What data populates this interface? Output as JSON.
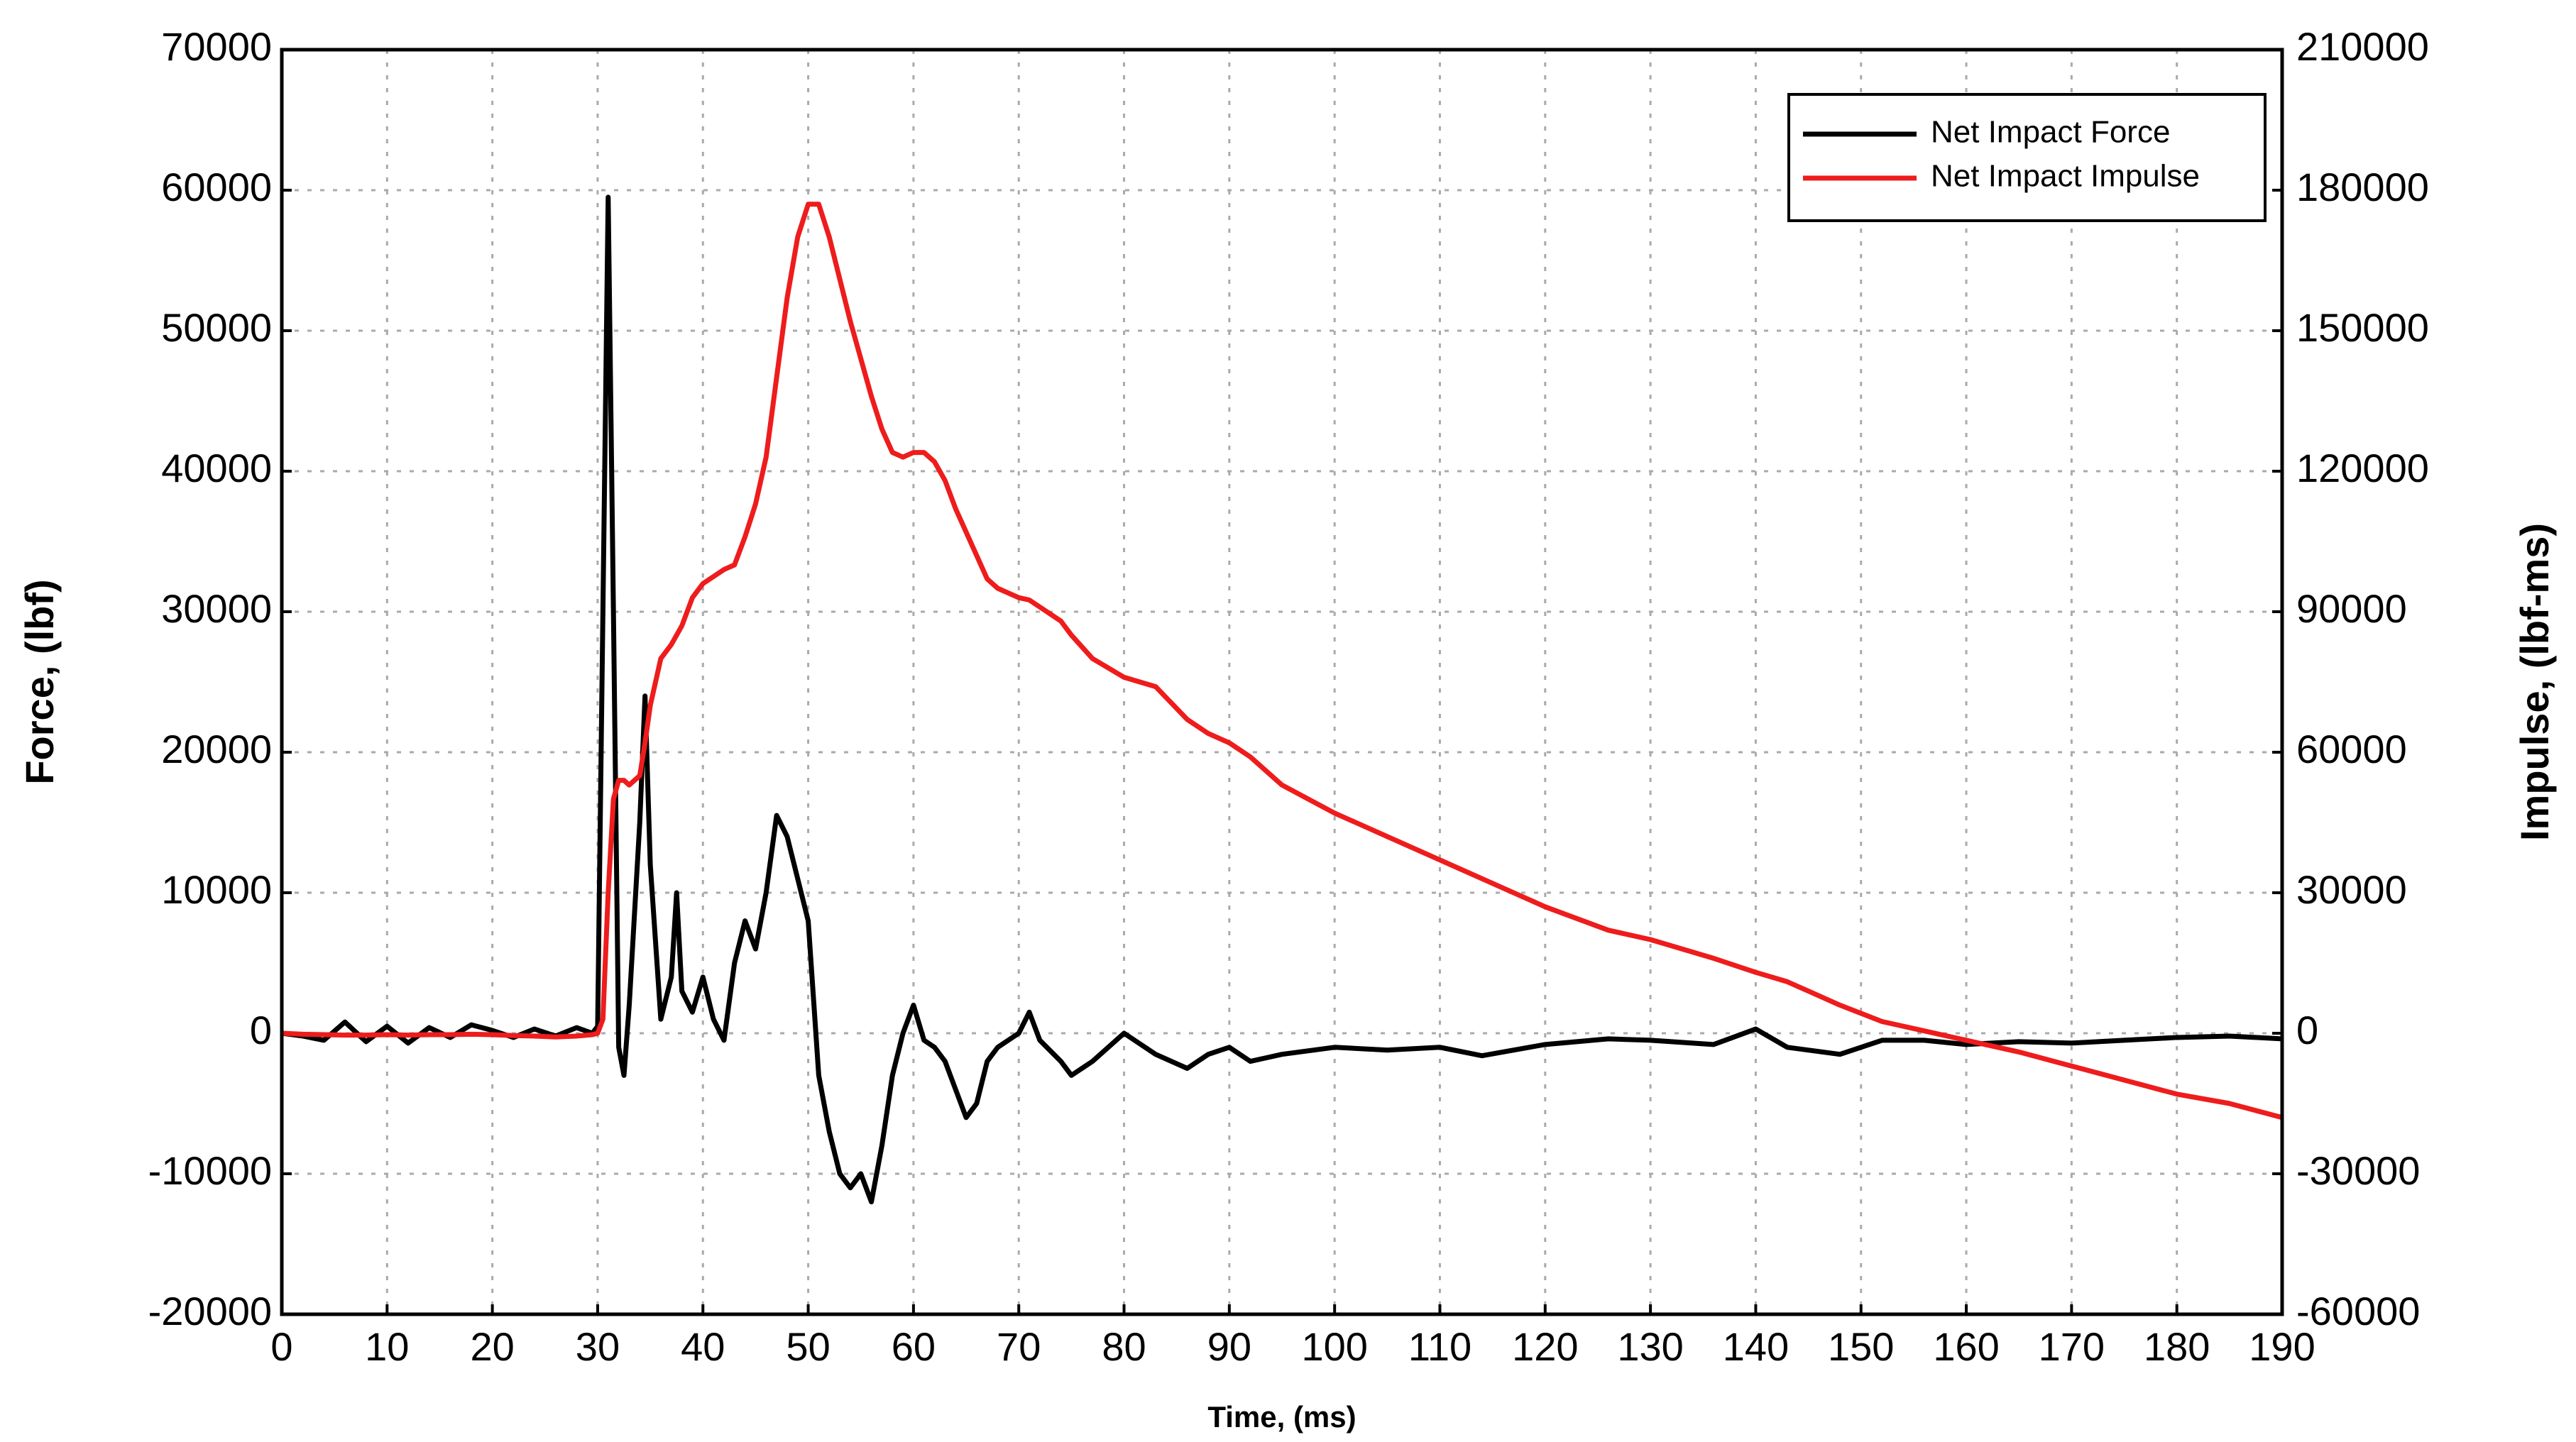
{
  "chart_data": {
    "type": "line",
    "xlabel": "Time, (ms)",
    "ylabel": "Force, (lbf)",
    "y2label": "Impulse, (lbf-ms)",
    "x": [
      0,
      2,
      4,
      6,
      8,
      10,
      12,
      14,
      16,
      18,
      20,
      22,
      24,
      26,
      28,
      29.5,
      30,
      30.5,
      31,
      31.5,
      32,
      32.5,
      33,
      34,
      34.5,
      35,
      36,
      37,
      37.5,
      38,
      39,
      40,
      41,
      42,
      43,
      44,
      45,
      46,
      47,
      48,
      49,
      50,
      51,
      52,
      53,
      54,
      55,
      56,
      57,
      58,
      59,
      60,
      61,
      62,
      63,
      64,
      65,
      66,
      67,
      68,
      70,
      71,
      72,
      74,
      75,
      77,
      80,
      83,
      86,
      88,
      90,
      92,
      95,
      100,
      105,
      110,
      114,
      120,
      126,
      130,
      136,
      140,
      143,
      148,
      152,
      156,
      160,
      165,
      170,
      175,
      180,
      185,
      190
    ],
    "series": [
      {
        "name": "Net Impact Force",
        "color": "#000000",
        "axis": "y",
        "values": [
          0,
          -200,
          -500,
          800,
          -600,
          500,
          -700,
          400,
          -300,
          600,
          200,
          -300,
          300,
          -200,
          400,
          0,
          500,
          30000,
          59500,
          30000,
          -1000,
          -3000,
          2000,
          15000,
          24000,
          12000,
          1000,
          4000,
          10000,
          3000,
          1500,
          4000,
          1000,
          -500,
          5000,
          8000,
          6000,
          10000,
          15500,
          14000,
          11000,
          8000,
          -3000,
          -7000,
          -10000,
          -11000,
          -10000,
          -12000,
          -8000,
          -3000,
          0,
          2000,
          -500,
          -1000,
          -2000,
          -4000,
          -6000,
          -5000,
          -2000,
          -1000,
          0,
          1500,
          -500,
          -2000,
          -3000,
          -2000,
          0,
          -1500,
          -2500,
          -1500,
          -1000,
          -2000,
          -1500,
          -1000,
          -1200,
          -1000,
          -1600,
          -800,
          -400,
          -500,
          -800,
          300,
          -1000,
          -1500,
          -500,
          -500,
          -800,
          -600,
          -700,
          -500,
          -300,
          -200,
          -400
        ]
      },
      {
        "name": "Net Impact Impulse",
        "color": "#ee1c1c",
        "axis": "y2",
        "values": [
          0,
          -200,
          -300,
          -400,
          -400,
          -300,
          -400,
          -300,
          -300,
          -200,
          -300,
          -500,
          -600,
          -800,
          -600,
          -300,
          0,
          3000,
          30000,
          50000,
          54000,
          54000,
          53000,
          55000,
          62000,
          70000,
          80000,
          83000,
          85000,
          87000,
          93000,
          96000,
          97500,
          99000,
          100000,
          106000,
          113000,
          123000,
          140000,
          157000,
          170000,
          177000,
          177000,
          170000,
          161000,
          152000,
          144000,
          136000,
          129000,
          124000,
          123000,
          124000,
          124000,
          122000,
          118000,
          112000,
          107000,
          102000,
          97000,
          95000,
          93000,
          92500,
          91000,
          88000,
          85000,
          80000,
          76000,
          74000,
          67000,
          64000,
          62000,
          59000,
          53000,
          47000,
          42000,
          37000,
          33000,
          27000,
          22000,
          20000,
          16000,
          13000,
          11000,
          6000,
          2500,
          500,
          -1500,
          -4000,
          -7000,
          -10000,
          -13000,
          -15000,
          -18000
        ]
      }
    ],
    "xlim": [
      0,
      190
    ],
    "xticks": [
      0,
      10,
      20,
      30,
      40,
      50,
      60,
      70,
      80,
      90,
      100,
      110,
      120,
      130,
      140,
      150,
      160,
      170,
      180,
      190
    ],
    "ylim": [
      -20000,
      70000
    ],
    "yticks": [
      -20000,
      -10000,
      0,
      10000,
      20000,
      30000,
      40000,
      50000,
      60000,
      70000
    ],
    "y2lim": [
      -60000,
      210000
    ],
    "y2ticks": [
      -60000,
      -30000,
      0,
      30000,
      60000,
      90000,
      120000,
      150000,
      180000,
      210000
    ],
    "grid": true,
    "legend": "upper-right"
  }
}
